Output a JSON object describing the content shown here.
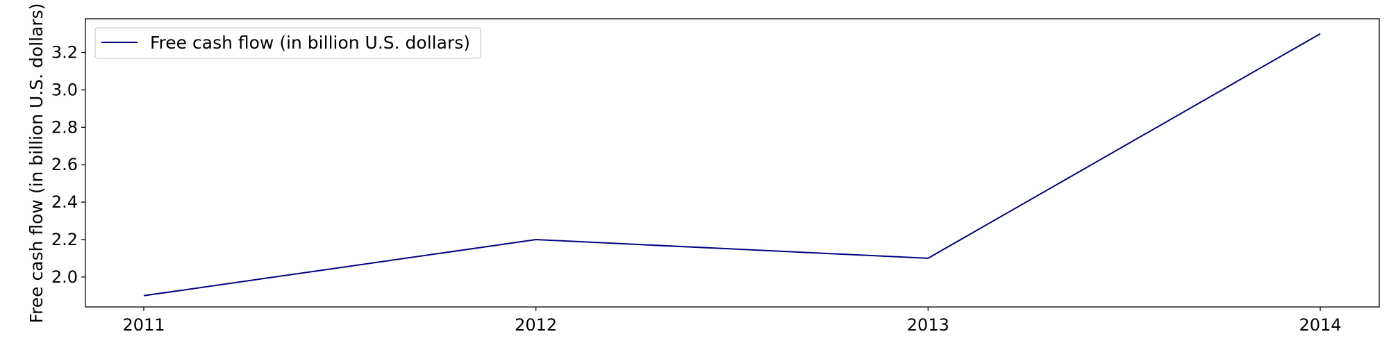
{
  "chart_data": {
    "type": "line",
    "title": "",
    "xlabel": "",
    "ylabel": "Free cash flow (in billion U.S. dollars)",
    "x": [
      "2011",
      "2012",
      "2013",
      "2014"
    ],
    "series": [
      {
        "name": "Free cash flow (in billion U.S. dollars)",
        "values": [
          1.9,
          2.2,
          2.1,
          3.3
        ],
        "color": "#000080"
      }
    ],
    "ylim": [
      1.84,
      3.38
    ],
    "yticks": [
      2.0,
      2.2,
      2.4,
      2.6,
      2.8,
      3.0,
      3.2
    ],
    "ytick_labels": [
      "2.0",
      "2.2",
      "2.4",
      "2.6",
      "2.8",
      "3.0",
      "3.2"
    ],
    "grid": false,
    "legend_position": "top-left"
  }
}
